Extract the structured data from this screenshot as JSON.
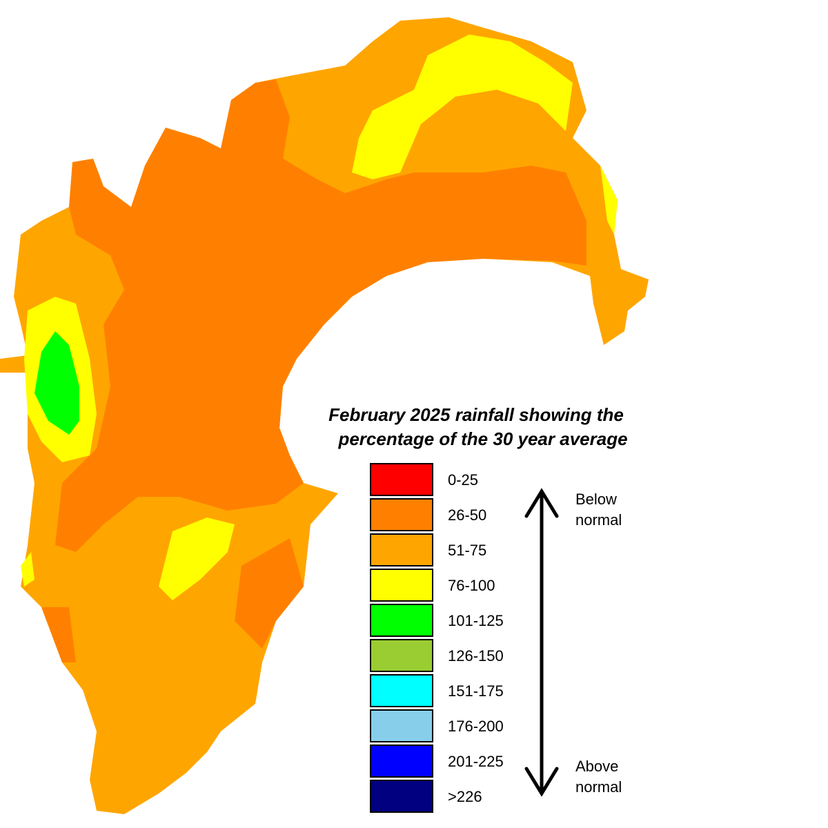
{
  "title": [
    "February 2025 rainfall showing the",
    "percentage of the 30 year average"
  ],
  "legend": [
    {
      "label": "0-25",
      "color": "#ff0000"
    },
    {
      "label": "26-50",
      "color": "#ff8000"
    },
    {
      "label": "51-75",
      "color": "#ffa500"
    },
    {
      "label": "76-100",
      "color": "#ffff00"
    },
    {
      "label": "101-125",
      "color": "#00ff00"
    },
    {
      "label": "126-150",
      "color": "#9acd32"
    },
    {
      "label": "151-175",
      "color": "#00ffff"
    },
    {
      "label": "176-200",
      "color": "#87ceeb"
    },
    {
      "label": "201-225",
      "color": "#0000ff"
    },
    {
      "label": ">226",
      "color": "#000080"
    }
  ],
  "arrow_labels": {
    "top": [
      "Below",
      "normal"
    ],
    "bottom": [
      "Above",
      "normal"
    ]
  }
}
